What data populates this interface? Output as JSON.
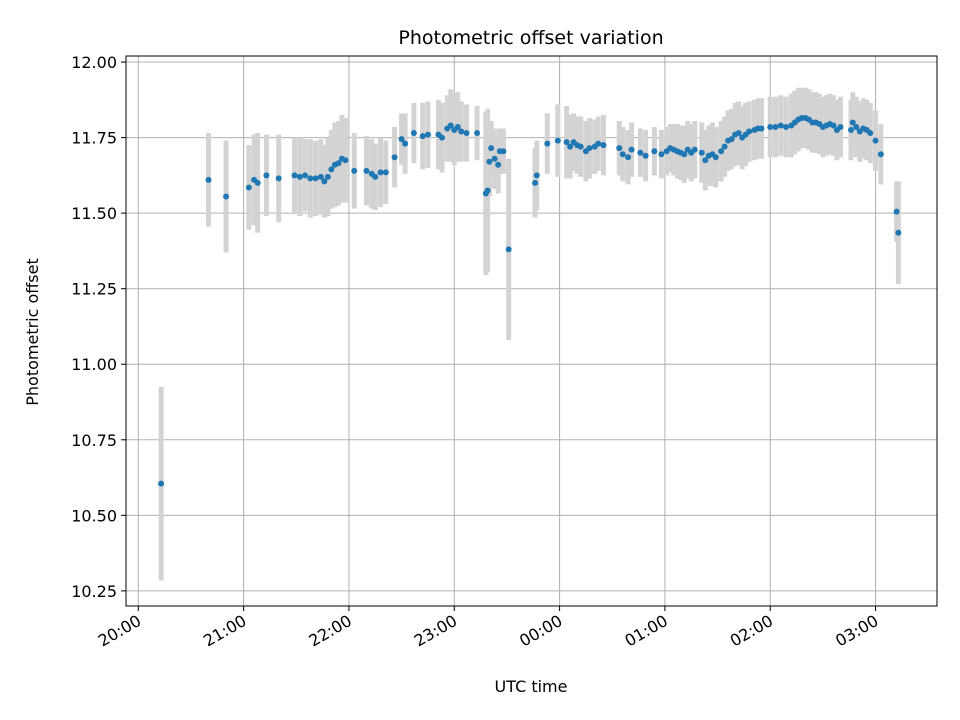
{
  "chart_data": {
    "type": "scatter",
    "title": "Photometric offset variation",
    "xlabel": "UTC time",
    "ylabel": "Photometric offset",
    "grid": true,
    "legend": "none",
    "colors": {
      "point": "#1f77b4",
      "errorbar": "#d3d3d3",
      "grid": "#b0b0b0"
    },
    "xlim": [
      "19:53",
      "03:35"
    ],
    "ylim": [
      10.2,
      12.02
    ],
    "xticks": [
      "20:00",
      "21:00",
      "22:00",
      "23:00",
      "00:00",
      "01:00",
      "02:00",
      "03:00"
    ],
    "yticks": [
      "10.25",
      "10.50",
      "10.75",
      "11.00",
      "11.25",
      "11.50",
      "11.75",
      "12.00"
    ],
    "series": [
      {
        "points": [
          [
            "20:13",
            10.605,
            0.32
          ],
          [
            "20:40",
            11.61,
            0.155
          ],
          [
            "20:50",
            11.555,
            0.185
          ],
          [
            "21:03",
            11.585,
            0.14
          ],
          [
            "21:06",
            11.61,
            0.15
          ],
          [
            "21:08",
            11.6,
            0.165
          ],
          [
            "21:13",
            11.625,
            0.135
          ],
          [
            "21:20",
            11.615,
            0.145
          ],
          [
            "21:29",
            11.625,
            0.125
          ],
          [
            "21:32",
            11.62,
            0.13
          ],
          [
            "21:35",
            11.625,
            0.12
          ],
          [
            "21:38",
            11.615,
            0.13
          ],
          [
            "21:41",
            11.615,
            0.125
          ],
          [
            "21:44",
            11.62,
            0.125
          ],
          [
            "21:46",
            11.605,
            0.12
          ],
          [
            "21:48",
            11.62,
            0.13
          ],
          [
            "21:50",
            11.645,
            0.13
          ],
          [
            "21:52",
            11.66,
            0.14
          ],
          [
            "21:54",
            11.665,
            0.14
          ],
          [
            "21:56",
            11.68,
            0.145
          ],
          [
            "21:58",
            11.675,
            0.14
          ],
          [
            "22:03",
            11.64,
            0.125
          ],
          [
            "22:10",
            11.64,
            0.115
          ],
          [
            "22:13",
            11.63,
            0.115
          ],
          [
            "22:15",
            11.62,
            0.11
          ],
          [
            "22:18",
            11.635,
            0.115
          ],
          [
            "22:21",
            11.635,
            0.105
          ],
          [
            "22:26",
            11.685,
            0.1
          ],
          [
            "22:30",
            11.745,
            0.085
          ],
          [
            "22:32",
            11.73,
            0.1
          ],
          [
            "22:37",
            11.765,
            0.1
          ],
          [
            "22:42",
            11.755,
            0.11
          ],
          [
            "22:45",
            11.76,
            0.11
          ],
          [
            "22:51",
            11.76,
            0.115
          ],
          [
            "22:53",
            11.75,
            0.115
          ],
          [
            "22:56",
            11.78,
            0.11
          ],
          [
            "22:58",
            11.79,
            0.12
          ],
          [
            "23:00",
            11.775,
            0.115
          ],
          [
            "23:02",
            11.785,
            0.115
          ],
          [
            "23:04",
            11.77,
            0.1
          ],
          [
            "23:07",
            11.765,
            0.095
          ],
          [
            "23:13",
            11.765,
            0.09
          ],
          [
            "23:18",
            11.565,
            0.27
          ],
          [
            "23:19",
            11.575,
            0.27
          ],
          [
            "23:20",
            11.67,
            0.115
          ],
          [
            "23:21",
            11.715,
            0.09
          ],
          [
            "23:23",
            11.68,
            0.1
          ],
          [
            "23:25",
            11.66,
            0.095
          ],
          [
            "23:26",
            11.705,
            0.075
          ],
          [
            "23:28",
            11.705,
            0.075
          ],
          [
            "23:31",
            11.38,
            0.3
          ],
          [
            "23:46",
            11.6,
            0.115
          ],
          [
            "23:47",
            11.625,
            0.115
          ],
          [
            "23:53",
            11.73,
            0.1
          ],
          [
            "23:59",
            11.74,
            0.12
          ],
          [
            "00:04",
            11.735,
            0.12
          ],
          [
            "00:06",
            11.72,
            0.105
          ],
          [
            "00:08",
            11.735,
            0.095
          ],
          [
            "00:10",
            11.725,
            0.095
          ],
          [
            "00:12",
            11.72,
            0.1
          ],
          [
            "00:15",
            11.705,
            0.1
          ],
          [
            "00:17",
            11.715,
            0.1
          ],
          [
            "00:20",
            11.72,
            0.09
          ],
          [
            "00:22",
            11.73,
            0.09
          ],
          [
            "00:25",
            11.725,
            0.1
          ],
          [
            "00:34",
            11.715,
            0.09
          ],
          [
            "00:36",
            11.695,
            0.09
          ],
          [
            "00:39",
            11.685,
            0.09
          ],
          [
            "00:41",
            11.71,
            0.09
          ],
          [
            "00:46",
            11.7,
            0.08
          ],
          [
            "00:49",
            11.69,
            0.085
          ],
          [
            "00:54",
            11.705,
            0.08
          ],
          [
            "00:58",
            11.695,
            0.08
          ],
          [
            "01:01",
            11.705,
            0.08
          ],
          [
            "01:03",
            11.715,
            0.08
          ],
          [
            "01:05",
            11.71,
            0.085
          ],
          [
            "01:07",
            11.705,
            0.09
          ],
          [
            "01:09",
            11.7,
            0.09
          ],
          [
            "01:11",
            11.695,
            0.095
          ],
          [
            "01:13",
            11.71,
            0.095
          ],
          [
            "01:15",
            11.7,
            0.095
          ],
          [
            "01:17",
            11.71,
            0.095
          ],
          [
            "01:21",
            11.7,
            0.1
          ],
          [
            "01:23",
            11.675,
            0.1
          ],
          [
            "01:25",
            11.69,
            0.1
          ],
          [
            "01:27",
            11.695,
            0.105
          ],
          [
            "01:29",
            11.685,
            0.1
          ],
          [
            "01:32",
            11.705,
            0.1
          ],
          [
            "01:34",
            11.72,
            0.1
          ],
          [
            "01:36",
            11.74,
            0.1
          ],
          [
            "01:38",
            11.745,
            0.1
          ],
          [
            "01:40",
            11.76,
            0.105
          ],
          [
            "01:42",
            11.765,
            0.105
          ],
          [
            "01:44",
            11.75,
            0.105
          ],
          [
            "01:46",
            11.76,
            0.105
          ],
          [
            "01:48",
            11.77,
            0.1
          ],
          [
            "01:51",
            11.775,
            0.1
          ],
          [
            "01:53",
            11.78,
            0.1
          ],
          [
            "01:55",
            11.78,
            0.1
          ],
          [
            "02:00",
            11.785,
            0.1
          ],
          [
            "02:03",
            11.785,
            0.1
          ],
          [
            "02:06",
            11.79,
            0.1
          ],
          [
            "02:09",
            11.785,
            0.1
          ],
          [
            "02:12",
            11.79,
            0.105
          ],
          [
            "02:14",
            11.8,
            0.105
          ],
          [
            "02:16",
            11.81,
            0.105
          ],
          [
            "02:18",
            11.815,
            0.1
          ],
          [
            "02:20",
            11.815,
            0.1
          ],
          [
            "02:22",
            11.81,
            0.1
          ],
          [
            "02:24",
            11.8,
            0.1
          ],
          [
            "02:26",
            11.8,
            0.1
          ],
          [
            "02:28",
            11.795,
            0.1
          ],
          [
            "02:30",
            11.785,
            0.1
          ],
          [
            "02:32",
            11.79,
            0.1
          ],
          [
            "02:34",
            11.795,
            0.1
          ],
          [
            "02:36",
            11.79,
            0.1
          ],
          [
            "02:38",
            11.775,
            0.1
          ],
          [
            "02:40",
            11.785,
            0.1
          ],
          [
            "02:46",
            11.775,
            0.1
          ],
          [
            "02:47",
            11.8,
            0.1
          ],
          [
            "02:49",
            11.785,
            0.1
          ],
          [
            "02:51",
            11.77,
            0.1
          ],
          [
            "02:53",
            11.78,
            0.1
          ],
          [
            "02:55",
            11.775,
            0.1
          ],
          [
            "02:57",
            11.765,
            0.1
          ],
          [
            "03:00",
            11.74,
            0.1
          ],
          [
            "03:03",
            11.695,
            0.1
          ],
          [
            "03:12",
            11.505,
            0.1
          ],
          [
            "03:13",
            11.435,
            0.17
          ]
        ]
      }
    ]
  }
}
